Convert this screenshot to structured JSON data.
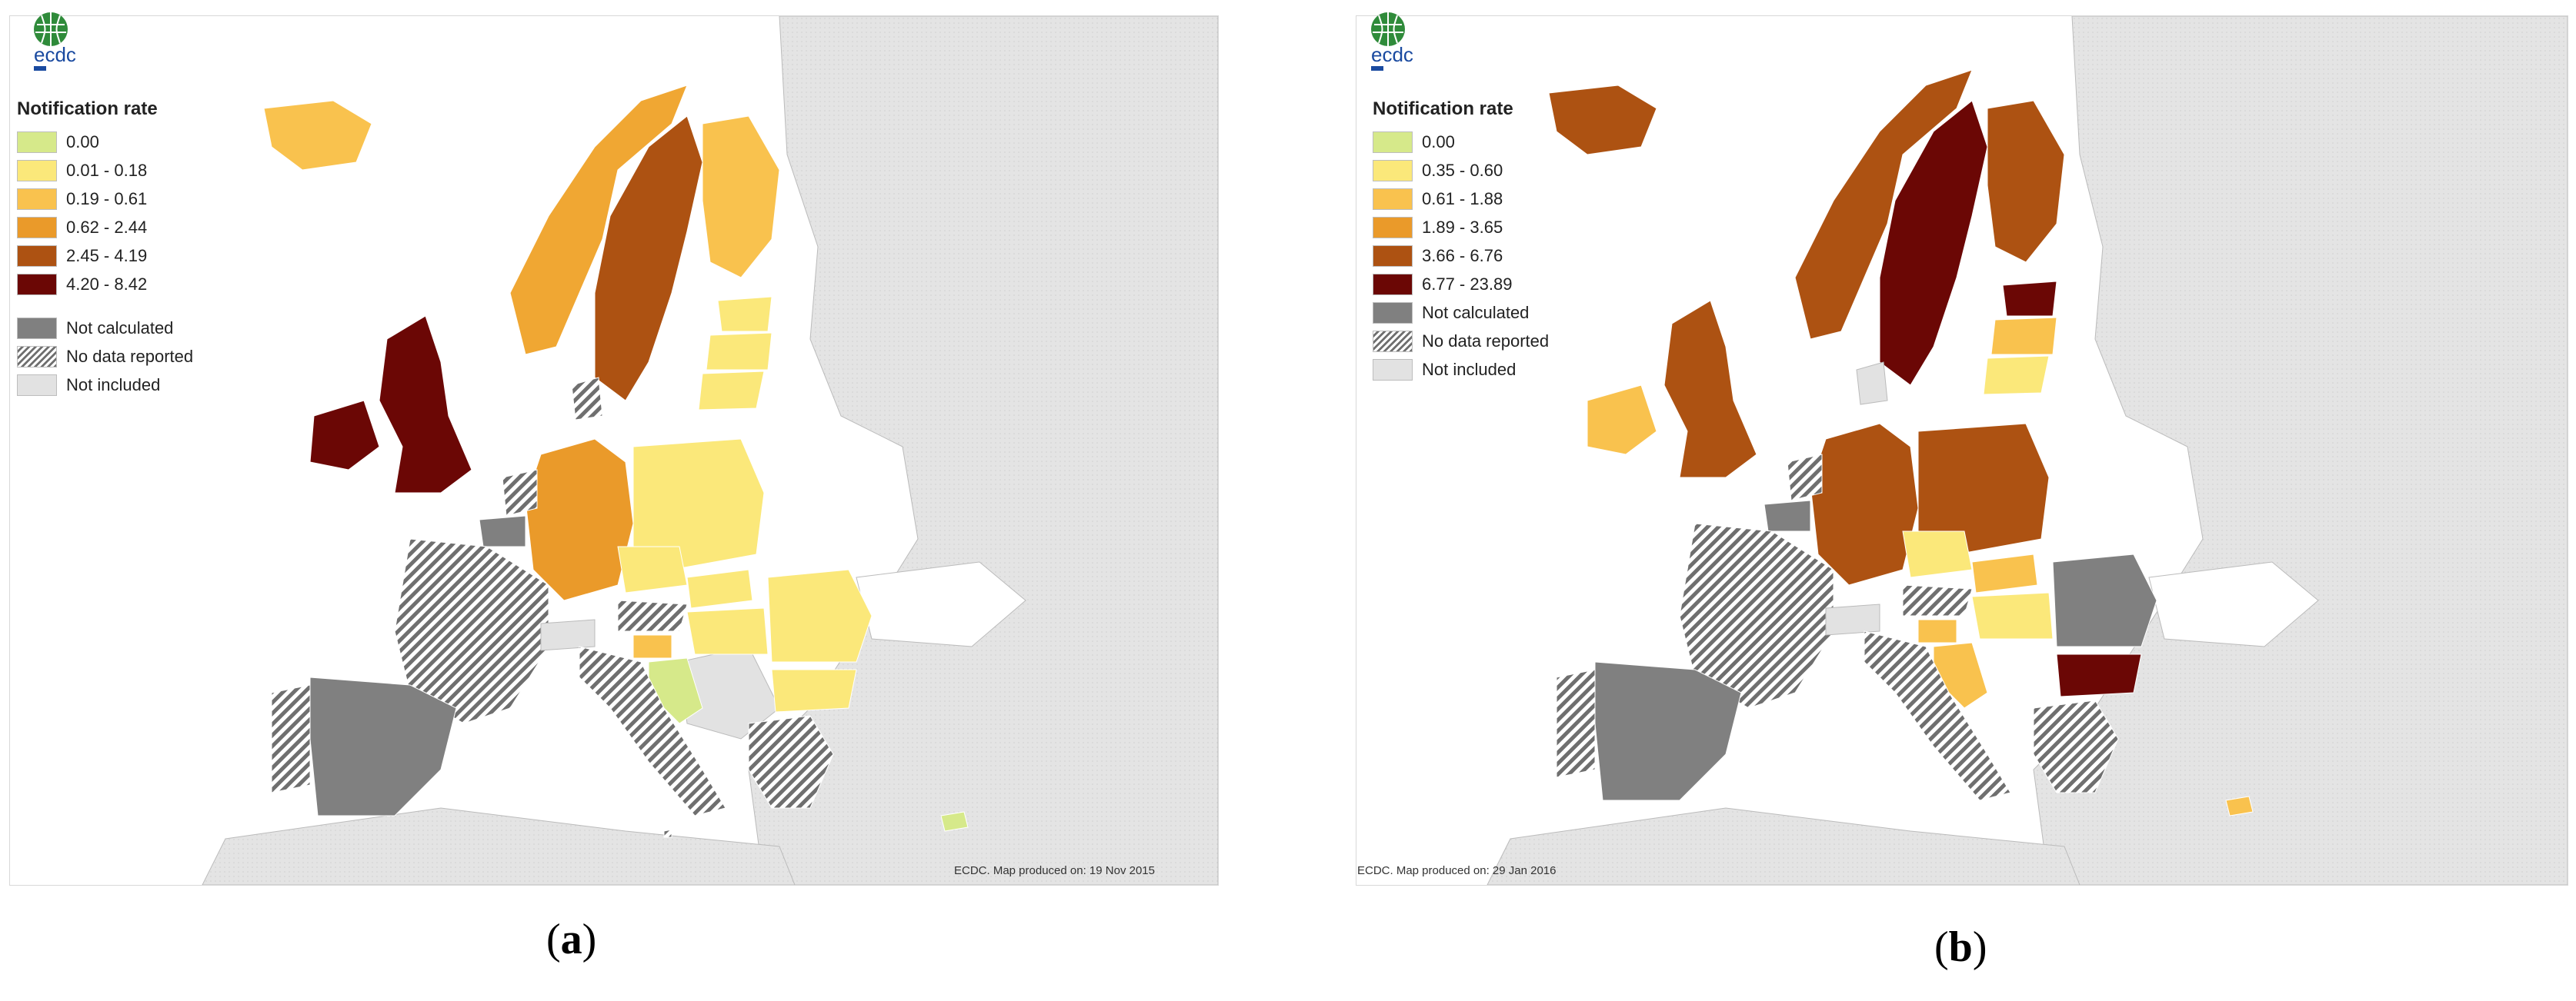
{
  "panels": [
    {
      "legend_title": "Notification rate",
      "logo_text": "ecdc",
      "legend": [
        {
          "label": "0.00",
          "color": "#d6e98a"
        },
        {
          "label": "0.01 - 0.18",
          "color": "#fbe87a"
        },
        {
          "label": "0.19 - 0.61",
          "color": "#f9c24e"
        },
        {
          "label": "0.62 - 2.44",
          "color": "#ea9a2a"
        },
        {
          "label": "2.45 - 4.19",
          "color": "#ad5212"
        },
        {
          "label": "4.20 - 8.42",
          "color": "#6b0705"
        }
      ],
      "status_legend": [
        {
          "label": "Not calculated",
          "color": "#808080"
        },
        {
          "label": "No data reported",
          "color": "hatched"
        },
        {
          "label": "Not included",
          "color": "#e2e2e2"
        }
      ],
      "credit": "ECDC. Map produced on: 19 Nov 2015",
      "caption_open": "(",
      "caption_letter": "a",
      "caption_close": ")"
    },
    {
      "legend_title": "Notification rate",
      "logo_text": "ecdc",
      "legend": [
        {
          "label": "0.00",
          "color": "#d6e98a"
        },
        {
          "label": "0.35 - 0.60",
          "color": "#fbe87a"
        },
        {
          "label": "0.61 - 1.88",
          "color": "#f9c24e"
        },
        {
          "label": "1.89 - 3.65",
          "color": "#ea9a2a"
        },
        {
          "label": "3.66 - 6.76",
          "color": "#ad5212"
        },
        {
          "label": "6.77 - 23.89",
          "color": "#6b0705"
        }
      ],
      "status_legend": [
        {
          "label": "Not calculated",
          "color": "#808080"
        },
        {
          "label": "No data reported",
          "color": "hatched"
        },
        {
          "label": "Not included",
          "color": "#e2e2e2"
        }
      ],
      "credit": "ECDC. Map produced on: 29 Jan 2016",
      "caption_open": "(",
      "caption_letter": "b",
      "caption_close": ")"
    }
  ]
}
